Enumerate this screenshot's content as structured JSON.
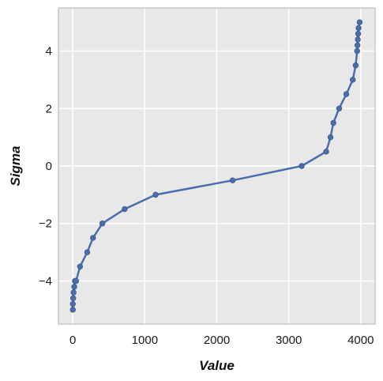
{
  "chart_data": {
    "type": "line",
    "title": "",
    "xlabel": "Value",
    "ylabel": "Sigma",
    "xlim": [
      -200,
      4200
    ],
    "ylim": [
      -5.5,
      5.5
    ],
    "xticks": [
      0,
      1000,
      2000,
      3000,
      4000
    ],
    "xtick_labels": [
      "0",
      "1000",
      "2000",
      "3000",
      "4000"
    ],
    "yticks": [
      -4,
      -2,
      0,
      2,
      4
    ],
    "ytick_labels": [
      "−4",
      "−2",
      "0",
      "2",
      "4"
    ],
    "grid": true,
    "colors": {
      "background": "#e8e8e8",
      "grid": "#ffffff",
      "line": "#4a6eab",
      "marker": "#4a6eab",
      "frame": "#b0b0b0"
    },
    "series": [
      {
        "x": [
          0,
          0,
          5,
          10,
          20,
          30,
          45,
          100,
          200,
          280,
          410,
          720,
          1150,
          2220,
          3180,
          3520,
          3580,
          3620,
          3700,
          3800,
          3890,
          3930,
          3950,
          3955,
          3960,
          3965,
          3970,
          3985
        ],
        "y": [
          -5.0,
          -4.8,
          -4.6,
          -4.4,
          -4.2,
          -4.0,
          -4.0,
          -3.5,
          -3.0,
          -2.5,
          -2.0,
          -1.5,
          -1.0,
          -0.5,
          0.0,
          0.5,
          1.0,
          1.5,
          2.0,
          2.5,
          3.0,
          3.5,
          4.0,
          4.2,
          4.4,
          4.6,
          4.8,
          5.0
        ]
      }
    ]
  }
}
